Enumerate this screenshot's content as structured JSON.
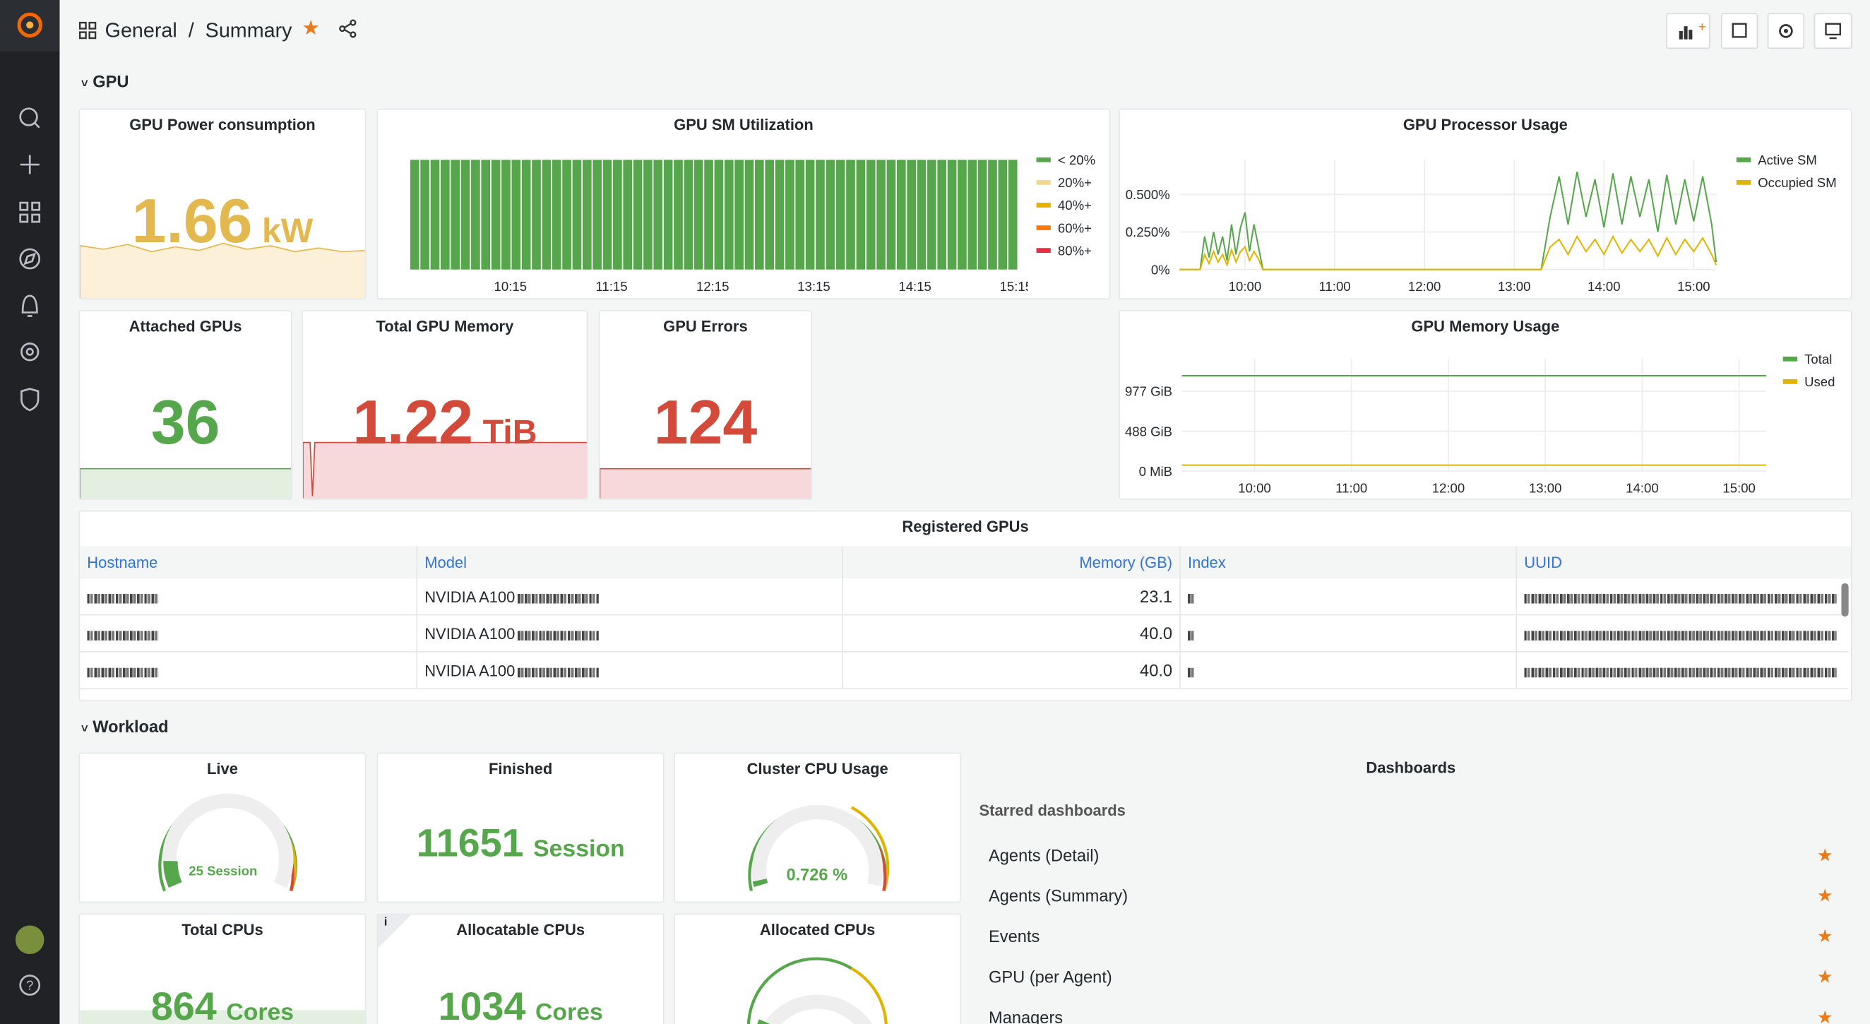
{
  "header": {
    "folder": "General",
    "separator": "/",
    "dashboard": "Summary"
  },
  "rows": {
    "gpu": "GPU",
    "workload": "Workload"
  },
  "panels": {
    "gpu_power": {
      "title": "GPU Power consumption",
      "value": 1.66,
      "unit": "kW"
    },
    "gpu_sm": {
      "title": "GPU SM Utilization",
      "legend": [
        {
          "name": "< 20%",
          "color": "#56a64b"
        },
        {
          "name": "20%+",
          "color": "#f2d98a"
        },
        {
          "name": "40%+",
          "color": "#e0b400"
        },
        {
          "name": "60%+",
          "color": "#ff780a"
        },
        {
          "name": "80%+",
          "color": "#e02f44"
        }
      ],
      "xticks": [
        "10:15",
        "11:15",
        "12:15",
        "13:15",
        "14:15",
        "15:15"
      ]
    },
    "gpu_processor": {
      "type": "line",
      "title": "GPU Processor Usage",
      "x": [
        9.27,
        9.5,
        9.55,
        9.6,
        9.65,
        9.7,
        9.75,
        9.8,
        9.85,
        9.9,
        9.95,
        10.0,
        10.05,
        10.1,
        10.15,
        10.2,
        13.3,
        13.4,
        13.5,
        13.6,
        13.7,
        13.8,
        13.9,
        14.0,
        14.1,
        14.2,
        14.3,
        14.4,
        14.5,
        14.6,
        14.7,
        14.8,
        14.9,
        15.0,
        15.1,
        15.2,
        15.25
      ],
      "xlim": [
        9.27,
        15.25
      ],
      "ylim": [
        0,
        0.73
      ],
      "xticks": [
        {
          "value": 10,
          "label": "10:00"
        },
        {
          "value": 11,
          "label": "11:00"
        },
        {
          "value": 12,
          "label": "12:00"
        },
        {
          "value": 13,
          "label": "13:00"
        },
        {
          "value": 14,
          "label": "14:00"
        },
        {
          "value": 15,
          "label": "15:00"
        }
      ],
      "yticks": [
        {
          "value": 0.5,
          "label": "0.500%"
        },
        {
          "value": 0.25,
          "label": "0.250%"
        },
        {
          "value": 0,
          "label": "0%"
        }
      ],
      "series": [
        {
          "name": "Active SM",
          "color": "#56a64b",
          "values": [
            0,
            0,
            0.22,
            0.08,
            0.25,
            0.1,
            0.22,
            0.06,
            0.3,
            0.1,
            0.28,
            0.38,
            0.12,
            0.3,
            0.15,
            0,
            0,
            0.35,
            0.62,
            0.3,
            0.65,
            0.35,
            0.6,
            0.28,
            0.64,
            0.3,
            0.62,
            0.35,
            0.6,
            0.25,
            0.63,
            0.3,
            0.6,
            0.32,
            0.62,
            0.3,
            0.05
          ]
        },
        {
          "name": "Occupied SM",
          "color": "#e0b400",
          "values": [
            0,
            0,
            0.1,
            0.04,
            0.12,
            0.05,
            0.1,
            0.03,
            0.13,
            0.05,
            0.12,
            0.15,
            0.06,
            0.12,
            0.07,
            0,
            0,
            0.15,
            0.2,
            0.1,
            0.22,
            0.12,
            0.2,
            0.1,
            0.22,
            0.11,
            0.2,
            0.12,
            0.2,
            0.09,
            0.21,
            0.1,
            0.2,
            0.12,
            0.21,
            0.1,
            0.03
          ]
        }
      ]
    },
    "attached": {
      "title": "Attached GPUs",
      "value": 36
    },
    "total_mem": {
      "title": "Total GPU Memory",
      "value": 1.22,
      "unit": "TiB"
    },
    "errors": {
      "title": "GPU Errors",
      "value": 124
    },
    "gpu_memory": {
      "type": "line",
      "title": "GPU Memory Usage",
      "x": [
        9.25,
        15.28
      ],
      "xlim": [
        9.25,
        15.28
      ],
      "ylim": [
        0,
        1371
      ],
      "xticks": [
        {
          "value": 10,
          "label": "10:00"
        },
        {
          "value": 11,
          "label": "11:00"
        },
        {
          "value": 12,
          "label": "12:00"
        },
        {
          "value": 13,
          "label": "13:00"
        },
        {
          "value": 14,
          "label": "14:00"
        },
        {
          "value": 15,
          "label": "15:00"
        }
      ],
      "yticks": [
        {
          "value": 977,
          "label": "977 GiB"
        },
        {
          "value": 488,
          "label": "488 GiB"
        },
        {
          "value": 0,
          "label": "0 MiB"
        }
      ],
      "series": [
        {
          "name": "Total",
          "color": "#56a64b",
          "values": [
            1166,
            1166
          ]
        },
        {
          "name": "Used",
          "color": "#e0b400",
          "values": [
            73,
            73
          ]
        }
      ]
    },
    "registered": {
      "title": "Registered GPUs",
      "columns": [
        "Hostname",
        "Model",
        "Memory (GB)",
        "Index",
        "UUID"
      ],
      "rows": [
        {
          "model": "NVIDIA A100",
          "memory": "23.1"
        },
        {
          "model": "NVIDIA A100",
          "memory": "40.0"
        },
        {
          "model": "NVIDIA A100",
          "memory": "40.0"
        }
      ]
    },
    "live": {
      "title": "Live",
      "value": 25,
      "unit": "Session"
    },
    "finished": {
      "title": "Finished",
      "value": 11651,
      "unit": "Session"
    },
    "cluster_cpu": {
      "title": "Cluster CPU Usage",
      "value": 0.726,
      "unit": "%"
    },
    "total_cpus": {
      "title": "Total CPUs",
      "value": 864,
      "unit": "Cores"
    },
    "allocatable": {
      "title": "Allocatable CPUs",
      "value": 1034,
      "unit": "Cores",
      "info": "i"
    },
    "allocated": {
      "title": "Allocated CPUs"
    },
    "dashboards": {
      "title": "Dashboards",
      "section": "Starred dashboards",
      "items": [
        "Agents (Detail)",
        "Agents (Summary)",
        "Events",
        "GPU (per Agent)",
        "Managers"
      ]
    }
  }
}
